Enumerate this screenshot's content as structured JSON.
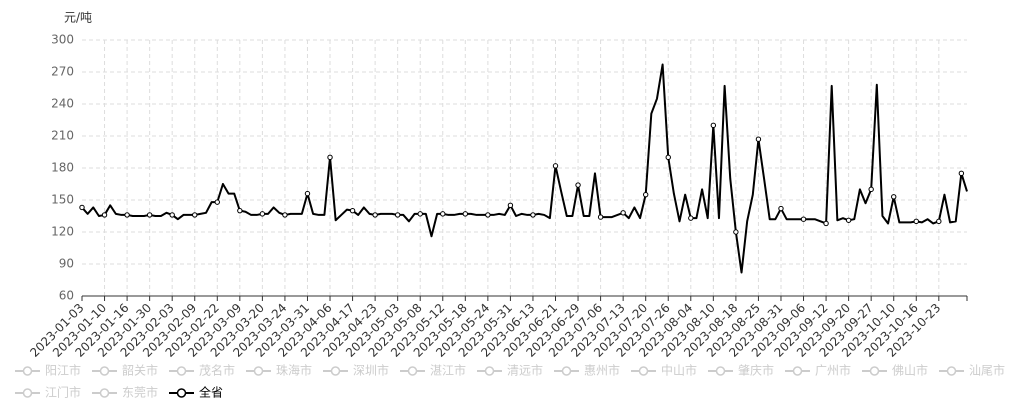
{
  "chart_data": {
    "type": "line",
    "y_unit": "元/吨",
    "categories": [
      "2023-01-03",
      null,
      null,
      null,
      "2023-01-10",
      null,
      null,
      null,
      "2023-01-16",
      null,
      null,
      null,
      "2023-01-30",
      null,
      null,
      null,
      "2023-02-03",
      null,
      null,
      null,
      "2023-02-09",
      null,
      null,
      null,
      "2023-02-22",
      null,
      null,
      null,
      "2023-03-09",
      null,
      null,
      null,
      "2023-03-20",
      null,
      null,
      null,
      "2023-03-24",
      null,
      null,
      null,
      "2023-03-31",
      null,
      null,
      null,
      "2023-04-06",
      null,
      null,
      null,
      "2023-04-17",
      null,
      null,
      null,
      "2023-04-23",
      null,
      null,
      null,
      "2023-05-03",
      null,
      null,
      null,
      "2023-05-08",
      null,
      null,
      null,
      "2023-05-12",
      null,
      null,
      null,
      "2023-05-18",
      null,
      null,
      null,
      "2023-05-24",
      null,
      null,
      null,
      "2023-05-31",
      null,
      null,
      null,
      "2023-06-13",
      null,
      null,
      null,
      "2023-06-21",
      null,
      null,
      null,
      "2023-06-29",
      null,
      null,
      null,
      "2023-07-06",
      null,
      null,
      null,
      "2023-07-13",
      null,
      null,
      null,
      "2023-07-20",
      null,
      null,
      null,
      "2023-07-26",
      null,
      null,
      null,
      "2023-08-04",
      null,
      null,
      null,
      "2023-08-10",
      null,
      null,
      null,
      "2023-08-18",
      null,
      null,
      null,
      "2023-08-25",
      null,
      null,
      null,
      "2023-08-31",
      null,
      null,
      null,
      "2023-09-06",
      null,
      null,
      null,
      "2023-09-12",
      null,
      null,
      null,
      "2023-09-20",
      null,
      null,
      null,
      "2023-09-27",
      null,
      null,
      null,
      "2023-10-10",
      null,
      null,
      null,
      "2023-10-16",
      null,
      null,
      null,
      "2023-10-23",
      null,
      null,
      null,
      null,
      null
    ],
    "series": [
      {
        "name": "全省",
        "color": "#000000",
        "values": [
          143,
          137,
          143,
          135,
          136,
          145,
          137,
          136,
          136,
          135,
          135,
          135,
          136,
          135,
          135,
          138,
          136,
          132,
          136,
          136,
          136,
          137,
          138,
          148,
          148,
          165,
          156,
          156,
          140,
          139,
          136,
          136,
          137,
          137,
          143,
          138,
          136,
          137,
          137,
          137,
          156,
          137,
          136,
          136,
          190,
          131,
          136,
          141,
          140,
          136,
          143,
          137,
          136,
          137,
          137,
          137,
          136,
          136,
          130,
          137,
          137,
          137,
          116,
          137,
          137,
          136,
          136,
          137,
          137,
          137,
          136,
          136,
          136,
          136,
          137,
          136,
          145,
          135,
          137,
          136,
          136,
          137,
          136,
          133,
          182,
          158,
          135,
          135,
          164,
          135,
          135,
          175,
          134,
          134,
          134,
          136,
          138,
          133,
          143,
          133,
          155,
          231,
          245,
          277,
          190,
          156,
          130,
          155,
          133,
          133,
          160,
          133,
          220,
          133,
          257,
          170,
          120,
          82,
          130,
          155,
          207,
          170,
          132,
          132,
          142,
          132,
          132,
          132,
          132,
          132,
          132,
          130,
          128,
          257,
          131,
          133,
          131,
          132,
          160,
          147,
          160,
          258,
          135,
          128,
          153,
          129,
          129,
          129,
          130,
          129,
          132,
          128,
          130,
          155,
          129,
          130,
          175,
          158
        ]
      }
    ],
    "legend": [
      {
        "name": "阳江市",
        "selected": false
      },
      {
        "name": "韶关市",
        "selected": false
      },
      {
        "name": "茂名市",
        "selected": false
      },
      {
        "name": "珠海市",
        "selected": false
      },
      {
        "name": "深圳市",
        "selected": false
      },
      {
        "name": "湛江市",
        "selected": false
      },
      {
        "name": "清远市",
        "selected": false
      },
      {
        "name": "惠州市",
        "selected": false
      },
      {
        "name": "中山市",
        "selected": false
      },
      {
        "name": "肇庆市",
        "selected": false
      },
      {
        "name": "广州市",
        "selected": false
      },
      {
        "name": "佛山市",
        "selected": false
      },
      {
        "name": "汕尾市",
        "selected": false
      },
      {
        "name": "江门市",
        "selected": false
      },
      {
        "name": "东莞市",
        "selected": false
      },
      {
        "name": "全省",
        "selected": true
      }
    ],
    "ylim": [
      60,
      300
    ],
    "yticks": [
      60,
      90,
      120,
      150,
      180,
      210,
      240,
      270,
      300
    ],
    "grid": true
  }
}
